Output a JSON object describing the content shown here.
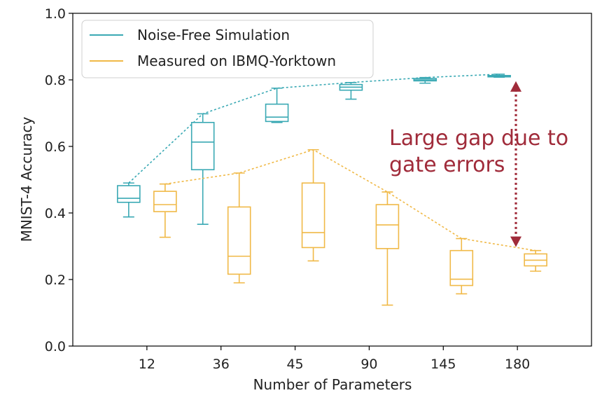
{
  "chart_data": {
    "type": "box",
    "xlabel": "Number of Parameters",
    "ylabel": "MNIST-4 Accuracy",
    "categories": [
      "12",
      "36",
      "45",
      "90",
      "145",
      "180"
    ],
    "ylim": [
      0.0,
      1.0
    ],
    "yticks": [
      "0.0",
      "0.2",
      "0.4",
      "0.6",
      "0.8",
      "1.0"
    ],
    "grid": false,
    "legend_position": "top-left",
    "series": [
      {
        "name": "Noise-Free Simulation",
        "color": "#3aa9b4",
        "boxes": [
          {
            "min": 0.388,
            "q1": 0.432,
            "median": 0.444,
            "q3": 0.482,
            "max": 0.49
          },
          {
            "min": 0.366,
            "q1": 0.53,
            "median": 0.613,
            "q3": 0.672,
            "max": 0.698
          },
          {
            "min": 0.672,
            "q1": 0.675,
            "median": 0.688,
            "q3": 0.727,
            "max": 0.775
          },
          {
            "min": 0.742,
            "q1": 0.769,
            "median": 0.778,
            "q3": 0.786,
            "max": 0.792
          },
          {
            "min": 0.79,
            "q1": 0.797,
            "median": 0.8,
            "q3": 0.804,
            "max": 0.807
          },
          {
            "min": 0.808,
            "q1": 0.809,
            "median": 0.811,
            "q3": 0.813,
            "max": 0.817
          }
        ]
      },
      {
        "name": "Measured on IBMQ-Yorktown",
        "color": "#f0b947",
        "boxes": [
          {
            "min": 0.327,
            "q1": 0.404,
            "median": 0.425,
            "q3": 0.465,
            "max": 0.487
          },
          {
            "min": 0.19,
            "q1": 0.216,
            "median": 0.27,
            "q3": 0.418,
            "max": 0.52
          },
          {
            "min": 0.256,
            "q1": 0.296,
            "median": 0.341,
            "q3": 0.49,
            "max": 0.59
          },
          {
            "min": 0.123,
            "q1": 0.293,
            "median": 0.364,
            "q3": 0.425,
            "max": 0.463
          },
          {
            "min": 0.157,
            "q1": 0.182,
            "median": 0.201,
            "q3": 0.287,
            "max": 0.323
          },
          {
            "min": 0.225,
            "q1": 0.241,
            "median": 0.258,
            "q3": 0.277,
            "max": 0.287
          }
        ]
      }
    ],
    "annotation": {
      "text_lines": [
        "Large gap due to",
        "gate errors"
      ],
      "color": "#a02b3a",
      "arrow_from": 0.817,
      "arrow_to": 0.287
    }
  }
}
